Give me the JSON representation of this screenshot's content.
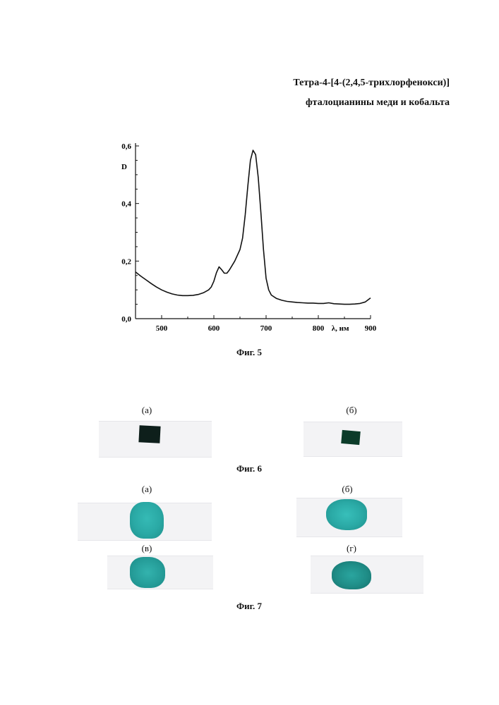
{
  "header": {
    "line1": "Тетра-4-[4-(2,4,5-трихлорфенокси)]",
    "line2": "фталоцианины меди и кобальта"
  },
  "chart_data": {
    "type": "line",
    "title": "",
    "xlabel": "λ, нм",
    "ylabel": "D",
    "xlim": [
      450,
      900
    ],
    "ylim": [
      0,
      0.6
    ],
    "x_ticks": [
      500,
      600,
      700,
      800,
      900
    ],
    "x_tick_labels": [
      "500",
      "600",
      "700",
      "800",
      "900"
    ],
    "y_ticks": [
      0.0,
      0.2,
      0.4,
      0.6
    ],
    "y_tick_labels": [
      "0,0",
      "0,2",
      "0,4",
      "0,6"
    ],
    "grid": false,
    "series": [
      {
        "color": "#111111",
        "x": [
          450,
          460,
          470,
          480,
          490,
          500,
          510,
          520,
          530,
          540,
          550,
          560,
          570,
          580,
          590,
          595,
          600,
          605,
          610,
          615,
          620,
          625,
          630,
          640,
          650,
          655,
          660,
          665,
          670,
          675,
          680,
          685,
          690,
          695,
          700,
          705,
          710,
          720,
          730,
          740,
          750,
          760,
          770,
          780,
          790,
          800,
          810,
          820,
          830,
          840,
          850,
          860,
          870,
          880,
          890,
          900
        ],
        "y": [
          0.162,
          0.148,
          0.135,
          0.122,
          0.11,
          0.1,
          0.092,
          0.086,
          0.082,
          0.08,
          0.08,
          0.081,
          0.084,
          0.09,
          0.1,
          0.11,
          0.13,
          0.16,
          0.18,
          0.17,
          0.158,
          0.158,
          0.17,
          0.2,
          0.24,
          0.28,
          0.36,
          0.46,
          0.55,
          0.585,
          0.57,
          0.49,
          0.37,
          0.24,
          0.14,
          0.1,
          0.082,
          0.07,
          0.064,
          0.06,
          0.058,
          0.056,
          0.055,
          0.054,
          0.054,
          0.053,
          0.053,
          0.055,
          0.052,
          0.051,
          0.05,
          0.05,
          0.051,
          0.053,
          0.058,
          0.072
        ]
      }
    ]
  },
  "fig5": {
    "caption": "Фиг. 5"
  },
  "fig6": {
    "caption": "Фиг. 6",
    "labels": {
      "a": "(а)",
      "b": "(б)"
    }
  },
  "fig7": {
    "caption": "Фиг. 7",
    "labels": {
      "a": "(а)",
      "b": "(б)",
      "v": "(в)",
      "g": "(г)"
    }
  },
  "colors": {
    "dark_sample": "#0e1f1b",
    "dark_green_sample": "#0b3b29",
    "teal_light": "#2fb1ad",
    "teal_mid": "#249b98",
    "teal_dark": "#1b8a83"
  }
}
